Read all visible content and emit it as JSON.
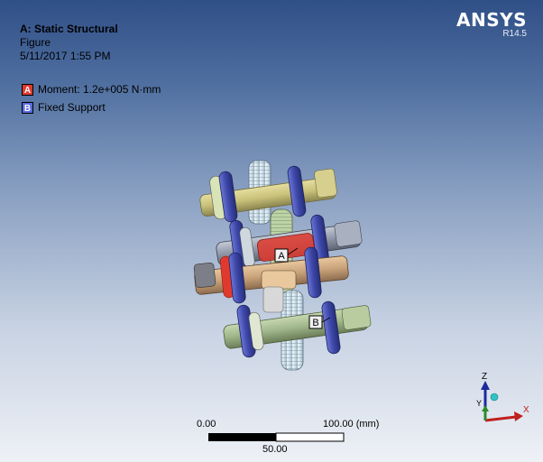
{
  "header": {
    "title": "A: Static Structural",
    "subtitle": "Figure",
    "timestamp": "5/11/2017 1:55 PM"
  },
  "logo": {
    "brand": "ANSYS",
    "version": "R14.5"
  },
  "legend": [
    {
      "tag": "A",
      "label": "Moment: 1.2e+005 N·mm",
      "color": "#e03a2e"
    },
    {
      "tag": "B",
      "label": "Fixed Support",
      "color": "#5a6adf"
    }
  ],
  "model": {
    "tag_a": "A",
    "tag_b": "B"
  },
  "scale": {
    "start": "0.00",
    "end": "100.00 (mm)",
    "mid": "50.00"
  },
  "triad": {
    "z": "Z",
    "y": "Y",
    "x": "X"
  },
  "colors": {
    "shaft_yellow": "#c9c27a",
    "shaft_gray": "#8f97a8",
    "shaft_tan": "#c9a27a",
    "shaft_green": "#9fb58a",
    "bearing_blue": "#4a55b8",
    "moment_red": "#e03a2e",
    "gear_light": "#cfe0ea"
  }
}
